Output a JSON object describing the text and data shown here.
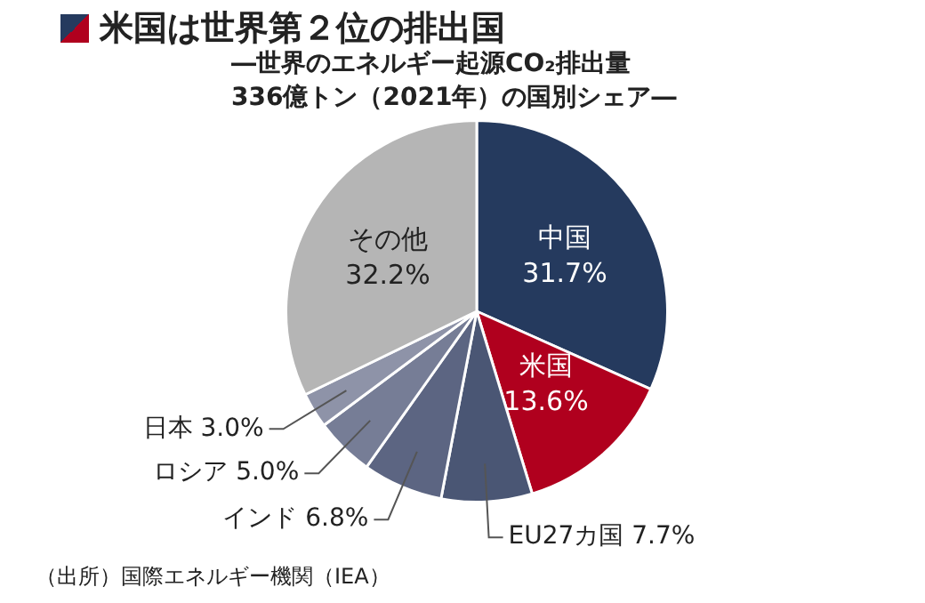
{
  "chart_data": {
    "type": "pie",
    "title": "米国は世界第２位の排出国",
    "subtitle": "―世界のエネルギー起源CO₂排出量\n336億トン（2021年）の国別シェア―",
    "categories": [
      "中国",
      "米国",
      "EU27カ国",
      "インド",
      "ロシア",
      "日本",
      "その他"
    ],
    "values": [
      31.7,
      13.6,
      7.7,
      6.8,
      5.0,
      3.0,
      32.2
    ],
    "value_labels": [
      "31.7%",
      "13.6%",
      "7.7%",
      "6.8%",
      "5.0%",
      "3.0%",
      "32.2%"
    ],
    "colors": [
      "#253a5e",
      "#b0001e",
      "#4a5674",
      "#5c6582",
      "#767d96",
      "#8e93a8",
      "#b5b5b5"
    ],
    "annotations": [
      "（出所）国際エネルギー機関（IEA）"
    ],
    "legend": false
  }
}
